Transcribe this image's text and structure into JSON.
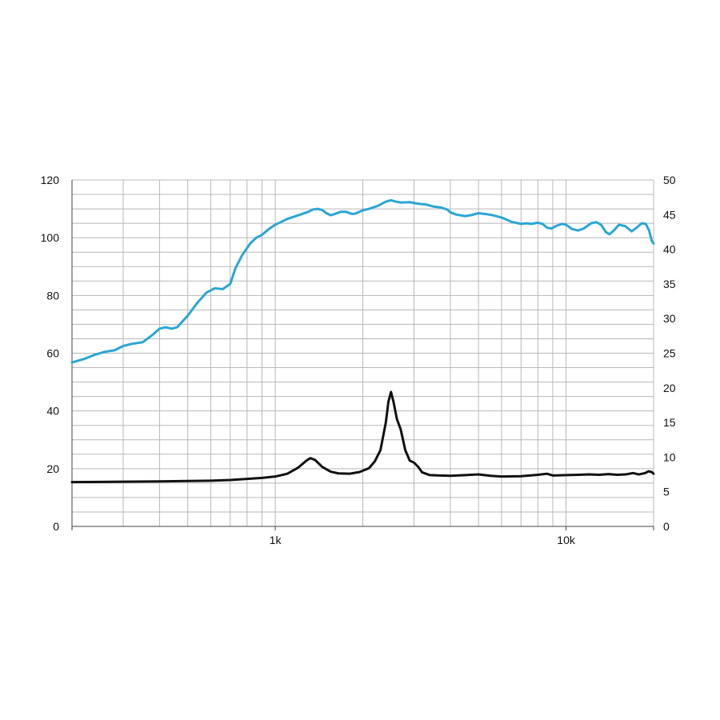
{
  "chart_data": {
    "type": "line",
    "title": "",
    "xlabel": "",
    "ylabel": "",
    "y2label": "",
    "x_scale": "log",
    "xlim": [
      200,
      20000
    ],
    "ylim": [
      0,
      120
    ],
    "y2lim": [
      0,
      50
    ],
    "grid": true,
    "legend": "none",
    "x_tick_labels": [
      {
        "value": 1000,
        "label": "1k"
      },
      {
        "value": 10000,
        "label": "10k"
      }
    ],
    "y_tick_labels": [
      "0",
      "20",
      "40",
      "60",
      "80",
      "100",
      "120"
    ],
    "y2_tick_labels": [
      "0",
      "5",
      "10",
      "15",
      "20",
      "25",
      "30",
      "35",
      "40",
      "45",
      "50"
    ],
    "series": [
      {
        "axis": "left",
        "color": "#2aa6d5",
        "points": [
          [
            200,
            56.8
          ],
          [
            220,
            58.0
          ],
          [
            240,
            59.5
          ],
          [
            260,
            60.5
          ],
          [
            280,
            61.0
          ],
          [
            300,
            62.5
          ],
          [
            320,
            63.2
          ],
          [
            350,
            63.8
          ],
          [
            380,
            66.5
          ],
          [
            400,
            68.5
          ],
          [
            420,
            69.0
          ],
          [
            440,
            68.5
          ],
          [
            460,
            69.0
          ],
          [
            500,
            73.0
          ],
          [
            540,
            77.5
          ],
          [
            580,
            81.0
          ],
          [
            620,
            82.5
          ],
          [
            660,
            82.2
          ],
          [
            700,
            84.0
          ],
          [
            730,
            89.5
          ],
          [
            770,
            94.0
          ],
          [
            820,
            98.0
          ],
          [
            860,
            100.0
          ],
          [
            900,
            101.0
          ],
          [
            950,
            103.0
          ],
          [
            1000,
            104.5
          ],
          [
            1100,
            106.5
          ],
          [
            1200,
            107.8
          ],
          [
            1300,
            109.0
          ],
          [
            1350,
            109.8
          ],
          [
            1400,
            110.0
          ],
          [
            1450,
            109.6
          ],
          [
            1500,
            108.5
          ],
          [
            1550,
            107.8
          ],
          [
            1600,
            108.2
          ],
          [
            1680,
            109.0
          ],
          [
            1750,
            109.0
          ],
          [
            1800,
            108.5
          ],
          [
            1850,
            108.2
          ],
          [
            1900,
            108.5
          ],
          [
            2000,
            109.5
          ],
          [
            2100,
            110.0
          ],
          [
            2250,
            111.0
          ],
          [
            2400,
            112.5
          ],
          [
            2500,
            113.0
          ],
          [
            2600,
            112.5
          ],
          [
            2700,
            112.2
          ],
          [
            2900,
            112.3
          ],
          [
            3100,
            111.8
          ],
          [
            3300,
            111.5
          ],
          [
            3500,
            110.8
          ],
          [
            3700,
            110.5
          ],
          [
            3900,
            109.8
          ],
          [
            4000,
            108.8
          ],
          [
            4200,
            108.0
          ],
          [
            4500,
            107.5
          ],
          [
            4700,
            107.8
          ],
          [
            5000,
            108.5
          ],
          [
            5300,
            108.2
          ],
          [
            5600,
            107.8
          ],
          [
            6000,
            107.0
          ],
          [
            6500,
            105.5
          ],
          [
            7000,
            104.8
          ],
          [
            7300,
            105.0
          ],
          [
            7600,
            104.8
          ],
          [
            8000,
            105.2
          ],
          [
            8300,
            104.8
          ],
          [
            8600,
            103.5
          ],
          [
            8900,
            103.2
          ],
          [
            9300,
            104.2
          ],
          [
            9700,
            104.8
          ],
          [
            10000,
            104.5
          ],
          [
            10500,
            103.0
          ],
          [
            11000,
            102.5
          ],
          [
            11500,
            103.2
          ],
          [
            12200,
            105.0
          ],
          [
            12700,
            105.4
          ],
          [
            13200,
            104.5
          ],
          [
            13700,
            102.0
          ],
          [
            14100,
            101.2
          ],
          [
            14600,
            102.5
          ],
          [
            15200,
            104.5
          ],
          [
            16000,
            104.0
          ],
          [
            16800,
            102.2
          ],
          [
            17500,
            103.5
          ],
          [
            18200,
            105.0
          ],
          [
            18800,
            104.8
          ],
          [
            19300,
            102.5
          ],
          [
            19700,
            99.0
          ],
          [
            20000,
            98.0
          ]
        ]
      },
      {
        "axis": "right",
        "color": "#111111",
        "points": [
          [
            200,
            6.4
          ],
          [
            300,
            6.45
          ],
          [
            400,
            6.5
          ],
          [
            500,
            6.55
          ],
          [
            600,
            6.6
          ],
          [
            700,
            6.7
          ],
          [
            800,
            6.85
          ],
          [
            900,
            7.0
          ],
          [
            1000,
            7.2
          ],
          [
            1100,
            7.6
          ],
          [
            1200,
            8.5
          ],
          [
            1280,
            9.5
          ],
          [
            1320,
            9.85
          ],
          [
            1370,
            9.6
          ],
          [
            1450,
            8.6
          ],
          [
            1550,
            7.9
          ],
          [
            1650,
            7.65
          ],
          [
            1800,
            7.6
          ],
          [
            1950,
            7.85
          ],
          [
            2100,
            8.4
          ],
          [
            2200,
            9.4
          ],
          [
            2300,
            11.0
          ],
          [
            2400,
            15.0
          ],
          [
            2450,
            18.0
          ],
          [
            2500,
            19.4
          ],
          [
            2550,
            18.0
          ],
          [
            2620,
            15.5
          ],
          [
            2700,
            14.0
          ],
          [
            2800,
            11.0
          ],
          [
            2900,
            9.5
          ],
          [
            3000,
            9.2
          ],
          [
            3100,
            8.6
          ],
          [
            3200,
            7.8
          ],
          [
            3400,
            7.4
          ],
          [
            3700,
            7.35
          ],
          [
            4000,
            7.3
          ],
          [
            4500,
            7.4
          ],
          [
            5000,
            7.5
          ],
          [
            5500,
            7.3
          ],
          [
            6000,
            7.2
          ],
          [
            7000,
            7.25
          ],
          [
            8000,
            7.45
          ],
          [
            8600,
            7.6
          ],
          [
            9000,
            7.35
          ],
          [
            10000,
            7.4
          ],
          [
            11000,
            7.45
          ],
          [
            12000,
            7.5
          ],
          [
            13000,
            7.45
          ],
          [
            14000,
            7.55
          ],
          [
            15000,
            7.45
          ],
          [
            16000,
            7.5
          ],
          [
            17000,
            7.7
          ],
          [
            17800,
            7.5
          ],
          [
            18700,
            7.7
          ],
          [
            19200,
            7.95
          ],
          [
            19700,
            7.85
          ],
          [
            20000,
            7.6
          ]
        ]
      }
    ]
  }
}
